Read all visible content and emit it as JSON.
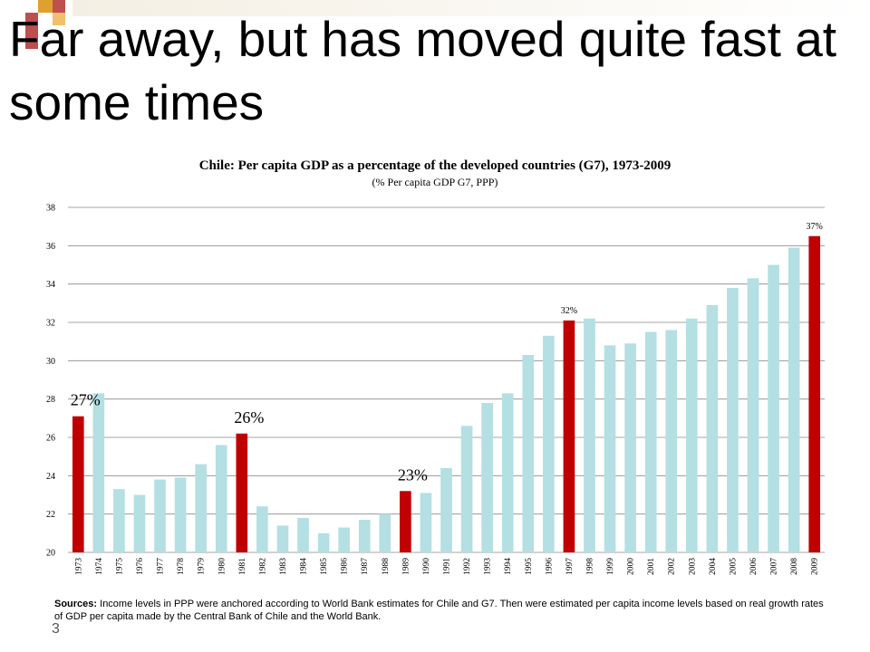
{
  "slide": {
    "title": "Far away, but has moved  quite fast at some  times",
    "page_number": "3",
    "sources_label": "Sources:",
    "sources_text": " Income levels in PPP were anchored according to World Bank estimates for Chile and G7. Then were estimated per capita income levels based on real growth rates of GDP per capita made by the Central Bank  of Chile and the World Bank."
  },
  "colors": {
    "highlight": "#c00000",
    "bar": "#b4dfe3",
    "grid": "#888888",
    "deco_orange": "#e0a030",
    "deco_red": "#c0504d"
  },
  "chart_data": {
    "type": "bar",
    "title": "Chile: Per capita GDP as a percentage of the developed countries  (G7), 1973-2009",
    "subtitle": "(% Per capita GDP G7, PPP)",
    "categories": [
      "1973",
      "1974",
      "1975",
      "1976",
      "1977",
      "1978",
      "1979",
      "1980",
      "1981",
      "1982",
      "1983",
      "1984",
      "1985",
      "1986",
      "1987",
      "1988",
      "1989",
      "1990",
      "1991",
      "1992",
      "1993",
      "1994",
      "1995",
      "1996",
      "1997",
      "1998",
      "1999",
      "2000",
      "2001",
      "2002",
      "2003",
      "2004",
      "2005",
      "2006",
      "2007",
      "2008",
      "2009"
    ],
    "values": [
      27.1,
      28.3,
      23.3,
      23.0,
      23.8,
      23.9,
      24.6,
      25.6,
      26.2,
      22.4,
      21.4,
      21.8,
      21.0,
      21.3,
      21.7,
      22.0,
      23.2,
      23.1,
      24.4,
      26.6,
      27.8,
      28.3,
      30.3,
      31.3,
      32.1,
      32.2,
      30.8,
      30.9,
      31.5,
      31.6,
      32.2,
      32.9,
      33.8,
      34.3,
      35.0,
      35.9,
      36.5
    ],
    "highlighted": [
      "1973",
      "1981",
      "1989",
      "1997",
      "2009"
    ],
    "annotations": [
      {
        "category": "1973",
        "text": "27%",
        "size": "large"
      },
      {
        "category": "1981",
        "text": "26%",
        "size": "large"
      },
      {
        "category": "1989",
        "text": "23%",
        "size": "large"
      },
      {
        "category": "1997",
        "text": "32%",
        "size": "small"
      },
      {
        "category": "2009",
        "text": "37%",
        "size": "small"
      }
    ],
    "yticks": [
      20,
      22,
      24,
      26,
      28,
      30,
      32,
      34,
      36,
      38
    ],
    "ylim": [
      20,
      38
    ],
    "grid": true,
    "legend": "none"
  }
}
